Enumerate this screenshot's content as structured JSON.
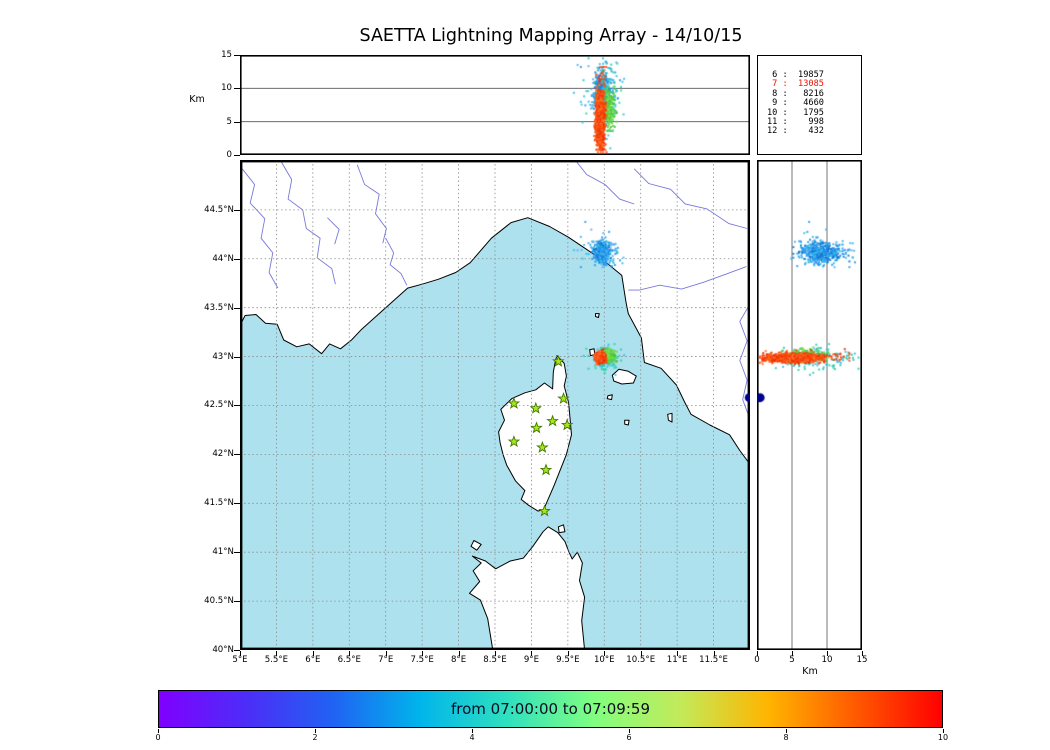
{
  "title": "SAETTA Lightning Mapping Array - 14/10/15",
  "panels": {
    "top_alt": {
      "y_label": "Km",
      "ticks": [
        {
          "v": 15,
          "label": "15"
        },
        {
          "v": 10,
          "label": "10"
        },
        {
          "v": 5,
          "label": "5"
        },
        {
          "v": 0,
          "label": "0"
        }
      ],
      "gridlines": [
        5,
        10
      ]
    },
    "right_alt": {
      "x_label": "Km",
      "ticks": [
        {
          "v": 0,
          "label": "0"
        },
        {
          "v": 5,
          "label": "5"
        },
        {
          "v": 10,
          "label": "10"
        },
        {
          "v": 15,
          "label": "15"
        }
      ],
      "gridlines": [
        5,
        10
      ]
    }
  },
  "map": {
    "lon_range": [
      5,
      12
    ],
    "lat_range": [
      40,
      45.01
    ],
    "lon_ticks": [
      {
        "v": 5,
        "label": "5°E"
      },
      {
        "v": 5.5,
        "label": "5.5°E"
      },
      {
        "v": 6,
        "label": "6°E"
      },
      {
        "v": 6.5,
        "label": "6.5°E"
      },
      {
        "v": 7,
        "label": "7°E"
      },
      {
        "v": 7.5,
        "label": "7.5°E"
      },
      {
        "v": 8,
        "label": "8°E"
      },
      {
        "v": 8.5,
        "label": "8.5°E"
      },
      {
        "v": 9,
        "label": "9°E"
      },
      {
        "v": 9.5,
        "label": "9.5°E"
      },
      {
        "v": 10,
        "label": "10°E"
      },
      {
        "v": 10.5,
        "label": "10.5°E"
      },
      {
        "v": 11,
        "label": "11°E"
      },
      {
        "v": 11.5,
        "label": "11.5°E"
      }
    ],
    "lat_ticks": [
      {
        "v": 44.5,
        "label": "44.5°N"
      },
      {
        "v": 44,
        "label": "44°N"
      },
      {
        "v": 43.5,
        "label": "43.5°N"
      },
      {
        "v": 43,
        "label": "43°N"
      },
      {
        "v": 42.5,
        "label": "42.5°N"
      },
      {
        "v": 42,
        "label": "42°N"
      },
      {
        "v": 41.5,
        "label": "41.5°N"
      },
      {
        "v": 41,
        "label": "41°N"
      },
      {
        "v": 40.5,
        "label": "40.5°N"
      },
      {
        "v": 40,
        "label": "40°N"
      }
    ],
    "lon_grid": [
      5.5,
      6,
      6.5,
      7,
      7.5,
      8,
      8.5,
      9,
      9.5,
      10,
      10.5,
      11,
      11.5
    ],
    "lat_grid": [
      40.5,
      41,
      41.5,
      42,
      42.5,
      43,
      43.5,
      44,
      44.5
    ]
  },
  "stats": {
    "rows": [
      {
        "level": "6",
        "count": "19857",
        "color": "#000000"
      },
      {
        "level": "7",
        "count": "13085",
        "color": "#ee1100"
      },
      {
        "level": "8",
        "count": "8216",
        "color": "#000000"
      },
      {
        "level": "9",
        "count": "4660",
        "color": "#000000"
      },
      {
        "level": "10",
        "count": "1795",
        "color": "#000000"
      },
      {
        "level": "11",
        "count": "998",
        "color": "#000000"
      },
      {
        "level": "12",
        "count": "432",
        "color": "#000000"
      }
    ]
  },
  "colorbar": {
    "label": "from 07:00:00 to 07:09:59",
    "label_color": "#0d0d22",
    "ticks": [
      "0",
      "2",
      "4",
      "6",
      "8",
      "10"
    ],
    "range": [
      0,
      10
    ],
    "gradient": [
      "#8000ff",
      "#4d2df7",
      "#2062f3",
      "#00b5eb",
      "#2fe0c0",
      "#80ff80",
      "#c3ea59",
      "#ffb500",
      "#ff5a00",
      "#ff0000"
    ]
  },
  "colors": {
    "sea": "#aee1ee",
    "land": "#ffffff",
    "coast": "#000000",
    "river": "#7878dd",
    "grid": "#8a8a8a",
    "station_fill": "#a8e61e",
    "station_edge": "#457800"
  },
  "stations": [
    [
      9.37,
      42.95
    ],
    [
      8.76,
      42.52
    ],
    [
      9.06,
      42.47
    ],
    [
      9.44,
      42.57
    ],
    [
      9.29,
      42.34
    ],
    [
      9.07,
      42.27
    ],
    [
      8.76,
      42.13
    ],
    [
      9.15,
      42.07
    ],
    [
      9.49,
      42.3
    ],
    [
      9.2,
      41.84
    ],
    [
      9.18,
      41.42
    ]
  ],
  "geo": {
    "mainland": [
      [
        5.0,
        43.32
      ],
      [
        5.07,
        43.42
      ],
      [
        5.22,
        43.43
      ],
      [
        5.35,
        43.34
      ],
      [
        5.51,
        43.33
      ],
      [
        5.6,
        43.17
      ],
      [
        5.78,
        43.1
      ],
      [
        5.95,
        43.13
      ],
      [
        6.12,
        43.03
      ],
      [
        6.23,
        43.13
      ],
      [
        6.38,
        43.08
      ],
      [
        6.53,
        43.17
      ],
      [
        6.67,
        43.28
      ],
      [
        6.88,
        43.42
      ],
      [
        7.12,
        43.58
      ],
      [
        7.3,
        43.7
      ],
      [
        7.5,
        43.74
      ],
      [
        7.72,
        43.79
      ],
      [
        7.96,
        43.86
      ],
      [
        8.16,
        43.96
      ],
      [
        8.45,
        44.21
      ],
      [
        8.72,
        44.37
      ],
      [
        8.95,
        44.42
      ],
      [
        9.25,
        44.33
      ],
      [
        9.51,
        44.22
      ],
      [
        9.83,
        44.06
      ],
      [
        10.03,
        43.96
      ],
      [
        10.24,
        43.83
      ],
      [
        10.3,
        43.55
      ],
      [
        10.33,
        43.44
      ],
      [
        10.51,
        43.19
      ],
      [
        10.55,
        42.94
      ],
      [
        10.78,
        42.88
      ],
      [
        10.99,
        42.71
      ],
      [
        11.1,
        42.54
      ],
      [
        11.19,
        42.41
      ],
      [
        11.45,
        42.3
      ],
      [
        11.72,
        42.2
      ],
      [
        11.86,
        42.04
      ],
      [
        12.0,
        41.9
      ],
      [
        12.0,
        45.01
      ],
      [
        5.0,
        45.01
      ]
    ],
    "corsica": [
      [
        9.35,
        43.01
      ],
      [
        9.45,
        42.93
      ],
      [
        9.48,
        42.8
      ],
      [
        9.45,
        42.7
      ],
      [
        9.51,
        42.53
      ],
      [
        9.55,
        42.2
      ],
      [
        9.48,
        42.0
      ],
      [
        9.4,
        41.85
      ],
      [
        9.31,
        41.68
      ],
      [
        9.24,
        41.56
      ],
      [
        9.17,
        41.44
      ],
      [
        9.09,
        41.42
      ],
      [
        8.96,
        41.48
      ],
      [
        8.86,
        41.54
      ],
      [
        8.91,
        41.63
      ],
      [
        8.78,
        41.73
      ],
      [
        8.66,
        41.89
      ],
      [
        8.61,
        42.0
      ],
      [
        8.57,
        42.12
      ],
      [
        8.55,
        42.23
      ],
      [
        8.63,
        42.35
      ],
      [
        8.58,
        42.46
      ],
      [
        8.73,
        42.57
      ],
      [
        8.91,
        42.63
      ],
      [
        9.06,
        42.66
      ],
      [
        9.18,
        42.73
      ],
      [
        9.29,
        42.67
      ],
      [
        9.3,
        42.84
      ],
      [
        9.33,
        42.96
      ]
    ],
    "sardinia": [
      [
        8.47,
        40.0
      ],
      [
        8.4,
        40.32
      ],
      [
        8.3,
        40.51
      ],
      [
        8.15,
        40.58
      ],
      [
        8.29,
        40.7
      ],
      [
        8.2,
        40.81
      ],
      [
        8.31,
        40.89
      ],
      [
        8.19,
        40.96
      ],
      [
        8.37,
        40.91
      ],
      [
        8.51,
        40.83
      ],
      [
        8.71,
        40.91
      ],
      [
        8.89,
        40.94
      ],
      [
        9.02,
        41.06
      ],
      [
        9.16,
        41.21
      ],
      [
        9.23,
        41.26
      ],
      [
        9.36,
        41.2
      ],
      [
        9.46,
        41.11
      ],
      [
        9.51,
        41.01
      ],
      [
        9.56,
        40.93
      ],
      [
        9.63,
        41.0
      ],
      [
        9.7,
        40.89
      ],
      [
        9.66,
        40.71
      ],
      [
        9.73,
        40.54
      ],
      [
        9.69,
        40.3
      ],
      [
        9.73,
        40.0
      ]
    ],
    "islands": [
      [
        [
          10.11,
          42.81
        ],
        [
          10.2,
          42.87
        ],
        [
          10.33,
          42.85
        ],
        [
          10.44,
          42.8
        ],
        [
          10.4,
          42.73
        ],
        [
          10.24,
          42.72
        ],
        [
          10.13,
          42.75
        ]
      ],
      [
        [
          9.8,
          43.07
        ],
        [
          9.86,
          43.08
        ],
        [
          9.87,
          43.02
        ],
        [
          9.81,
          43.01
        ]
      ],
      [
        [
          9.88,
          43.44
        ],
        [
          9.93,
          43.44
        ],
        [
          9.92,
          43.4
        ],
        [
          9.88,
          43.41
        ]
      ],
      [
        [
          10.05,
          42.6
        ],
        [
          10.11,
          42.61
        ],
        [
          10.1,
          42.56
        ],
        [
          10.04,
          42.57
        ]
      ],
      [
        [
          10.28,
          42.35
        ],
        [
          10.34,
          42.35
        ],
        [
          10.33,
          42.3
        ],
        [
          10.28,
          42.31
        ]
      ],
      [
        [
          10.87,
          42.41
        ],
        [
          10.93,
          42.42
        ],
        [
          10.93,
          42.33
        ],
        [
          10.88,
          42.35
        ]
      ],
      [
        [
          8.21,
          41.12
        ],
        [
          8.31,
          41.08
        ],
        [
          8.25,
          41.02
        ],
        [
          8.17,
          41.06
        ]
      ],
      [
        [
          9.37,
          41.26
        ],
        [
          9.44,
          41.28
        ],
        [
          9.46,
          41.21
        ],
        [
          9.38,
          41.2
        ]
      ]
    ],
    "rivers": [
      [
        [
          5.03,
          44.92
        ],
        [
          5.2,
          44.76
        ],
        [
          5.14,
          44.57
        ],
        [
          5.34,
          44.41
        ],
        [
          5.29,
          44.21
        ],
        [
          5.45,
          44.06
        ],
        [
          5.4,
          43.86
        ],
        [
          5.52,
          43.7
        ]
      ],
      [
        [
          5.56,
          45.0
        ],
        [
          5.71,
          44.81
        ],
        [
          5.66,
          44.61
        ],
        [
          5.86,
          44.5
        ],
        [
          5.91,
          44.31
        ],
        [
          6.1,
          44.21
        ],
        [
          6.06,
          44.01
        ],
        [
          6.26,
          43.9
        ],
        [
          6.31,
          43.74
        ]
      ],
      [
        [
          6.61,
          44.96
        ],
        [
          6.71,
          44.76
        ],
        [
          6.91,
          44.66
        ],
        [
          6.86,
          44.46
        ],
        [
          7.01,
          44.31
        ],
        [
          6.96,
          44.16
        ]
      ],
      [
        [
          7.0,
          44.21
        ],
        [
          7.11,
          44.06
        ],
        [
          7.06,
          43.94
        ],
        [
          7.21,
          43.85
        ],
        [
          7.29,
          43.73
        ]
      ],
      [
        [
          11.95,
          43.92
        ],
        [
          11.66,
          43.84
        ],
        [
          11.36,
          43.76
        ],
        [
          11.06,
          43.69
        ],
        [
          10.76,
          43.73
        ],
        [
          10.48,
          43.68
        ],
        [
          10.33,
          43.68
        ]
      ],
      [
        [
          12.0,
          43.54
        ],
        [
          11.86,
          43.36
        ],
        [
          11.96,
          43.16
        ],
        [
          11.86,
          42.96
        ],
        [
          11.96,
          42.76
        ],
        [
          11.9,
          42.56
        ],
        [
          11.98,
          42.4
        ]
      ],
      [
        [
          10.41,
          44.92
        ],
        [
          10.61,
          44.77
        ],
        [
          10.91,
          44.71
        ],
        [
          11.11,
          44.56
        ],
        [
          11.41,
          44.51
        ],
        [
          11.71,
          44.36
        ],
        [
          11.96,
          44.31
        ]
      ],
      [
        [
          9.61,
          45.0
        ],
        [
          9.76,
          44.86
        ],
        [
          10.01,
          44.76
        ],
        [
          10.21,
          44.61
        ],
        [
          10.41,
          44.56
        ]
      ],
      [
        [
          6.2,
          44.42
        ],
        [
          6.36,
          44.3
        ],
        [
          6.3,
          44.15
        ]
      ]
    ]
  },
  "chart_data": {
    "type": "scatter",
    "title": "SAETTA Lightning Mapping Array - 14/10/15",
    "panels": {
      "top": {
        "x": "longitude_deg_E",
        "y": "altitude_km",
        "y_range": [
          0,
          15
        ]
      },
      "map": {
        "x": "longitude_deg_E",
        "y": "latitude_deg_N",
        "x_range": [
          5,
          12
        ],
        "y_range": [
          40,
          45
        ]
      },
      "right": {
        "x": "altitude_km",
        "y": "latitude_deg_N",
        "x_range": [
          0,
          15
        ]
      }
    },
    "color_scale": {
      "label": "from 07:00:00 to 07:09:59",
      "range": [
        0,
        10
      ],
      "ticks": [
        0,
        2,
        4,
        6,
        8,
        10
      ]
    },
    "source_counts": {
      "6": 19857,
      "7": 13085,
      "8": 8216,
      "9": 4660,
      "10": 1795,
      "11": 998,
      "12": 432
    },
    "clusters": [
      {
        "name": "north-storm-blue",
        "seed": 7,
        "count": 430,
        "lon": 9.965,
        "lat": 44.06,
        "alt": 9.2,
        "lon_sd": 0.05,
        "lat_sd": 0.048,
        "alt_sd": 1.45,
        "alt_min": 5.2,
        "alt_max": 13.2,
        "colors": [
          "#1e88e0",
          "#2b9af0",
          "#1273d2",
          "#2aa8ea"
        ]
      },
      {
        "name": "north-storm-halo",
        "seed": 8,
        "count": 90,
        "lon": 9.99,
        "lat": 44.07,
        "alt": 9.5,
        "lon_sd": 0.15,
        "lat_sd": 0.1,
        "alt_sd": 2.2,
        "alt_min": 4,
        "alt_max": 14,
        "colors": [
          "#2b9af0",
          "#30c0e8",
          "#58b0ee"
        ]
      },
      {
        "name": "main-storm-cyan",
        "seed": 9,
        "count": 150,
        "lon": 10.0,
        "lat": 42.99,
        "alt": 8.4,
        "lon_sd": 0.1,
        "lat_sd": 0.06,
        "alt_sd": 2.8,
        "alt_min": 1,
        "alt_max": 14.5,
        "colors": [
          "#28c8c4",
          "#2fd4a0",
          "#38bde6"
        ]
      },
      {
        "name": "main-storm-green",
        "seed": 10,
        "count": 240,
        "lon": 10.06,
        "lat": 43.01,
        "alt": 6.8,
        "lon_sd": 0.042,
        "lat_sd": 0.03,
        "alt_sd": 1.4,
        "alt_min": 3.6,
        "alt_max": 10.2,
        "colors": [
          "#54ce33",
          "#6eda49",
          "#41c043",
          "#88e04d"
        ]
      },
      {
        "name": "main-storm-red-tall",
        "seed": 11,
        "count": 130,
        "lon": 9.95,
        "lat": 42.99,
        "alt": 7.0,
        "lon_sd": 0.033,
        "lat_sd": 0.028,
        "alt_sd": 3.2,
        "alt_min": 0.4,
        "alt_max": 13.2,
        "colors": [
          "#f8540f",
          "#ef3707"
        ]
      },
      {
        "name": "main-storm-red",
        "seed": 12,
        "count": 1500,
        "lon": 9.945,
        "lat": 42.985,
        "alt": 5.2,
        "lon_sd": 0.028,
        "lat_sd": 0.02,
        "alt_sd": 1.85,
        "alt_min": 0.8,
        "alt_max": 9.6,
        "colors": [
          "#f23c0a",
          "#ff5a14",
          "#e92e06",
          "#ff7428",
          "#f84a0e"
        ]
      }
    ],
    "markers": [
      {
        "name": "isolated-source",
        "lon": 11.99,
        "lat": 42.58,
        "alt": 0.45,
        "color": "#00008b",
        "r": 4.5
      }
    ]
  }
}
